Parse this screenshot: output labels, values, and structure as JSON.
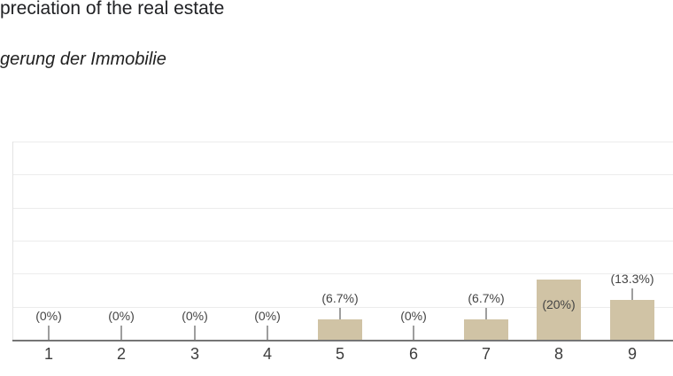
{
  "header": {
    "title_fragment": "preciation of the real estate",
    "subtitle_fragment": "gerung der Immobilie"
  },
  "chart_data": {
    "type": "bar",
    "title": "preciation of the real estate",
    "subtitle": "gerung der Immobilie",
    "categories": [
      "1",
      "2",
      "3",
      "4",
      "5",
      "6",
      "7",
      "8",
      "9"
    ],
    "values_percent": [
      0,
      0,
      0,
      0,
      6.7,
      0,
      6.7,
      20,
      13.3
    ],
    "value_labels": [
      "(0%)",
      "(0%)",
      "(0%)",
      "(0%)",
      "(6.7%)",
      "(0%)",
      "(6.7%)",
      "(20%)",
      "(13.3%)"
    ],
    "xlabel": "",
    "ylabel": "",
    "ylim_percent": [
      0,
      65.5
    ],
    "grid": "horizontal",
    "legend_position": "none",
    "bar_color": "#d0c3a5",
    "annotation_color": "#444444",
    "axis_line_color": "#757575",
    "gridline_color": "#ececec",
    "stem_color": "#9e9e9e",
    "note": "chart cropped at left of title text and at right edge of plot"
  }
}
